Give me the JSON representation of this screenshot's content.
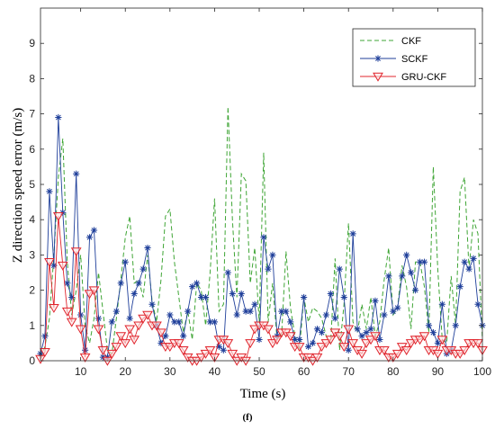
{
  "chart_data": {
    "type": "line",
    "xlabel": "Time (s)",
    "ylabel": "Z direction speed error (m/s)",
    "caption": "(f)",
    "xlim": [
      1,
      100
    ],
    "ylim": [
      0,
      10
    ],
    "xticks": [
      "10",
      "20",
      "30",
      "40",
      "50",
      "60",
      "70",
      "80",
      "90",
      "100"
    ],
    "yticks": [
      "0",
      "1",
      "2",
      "3",
      "4",
      "5",
      "6",
      "7",
      "8",
      "9"
    ],
    "legend_position": "top-right",
    "x": [
      1,
      2,
      3,
      4,
      5,
      6,
      7,
      8,
      9,
      10,
      11,
      12,
      13,
      14,
      15,
      16,
      17,
      18,
      19,
      20,
      21,
      22,
      23,
      24,
      25,
      26,
      27,
      28,
      29,
      30,
      31,
      32,
      33,
      34,
      35,
      36,
      37,
      38,
      39,
      40,
      41,
      42,
      43,
      44,
      45,
      46,
      47,
      48,
      49,
      50,
      51,
      52,
      53,
      54,
      55,
      56,
      57,
      58,
      59,
      60,
      61,
      62,
      63,
      64,
      65,
      66,
      67,
      68,
      69,
      70,
      71,
      72,
      73,
      74,
      75,
      76,
      77,
      78,
      79,
      80,
      81,
      82,
      83,
      84,
      85,
      86,
      87,
      88,
      89,
      90,
      91,
      92,
      93,
      94,
      95,
      96,
      97,
      98,
      99,
      100
    ],
    "series": [
      {
        "name": "CKF",
        "color": "#3fa535",
        "style": "dashed",
        "marker": "none",
        "values": [
          0.1,
          0.4,
          1.2,
          3.0,
          5.2,
          6.3,
          2.8,
          1.3,
          2.0,
          3.0,
          1.0,
          0.5,
          1.2,
          2.5,
          1.4,
          0.3,
          0.2,
          1.2,
          2.3,
          3.5,
          4.1,
          2.2,
          2.3,
          1.8,
          3.0,
          1.7,
          1.1,
          2.3,
          4.1,
          4.3,
          2.8,
          1.8,
          0.8,
          1.4,
          0.6,
          2.2,
          2.0,
          1.0,
          2.5,
          4.6,
          1.4,
          1.6,
          7.2,
          4.0,
          1.8,
          5.3,
          5.1,
          2.2,
          3.2,
          1.1,
          5.9,
          1.1,
          2.2,
          0.6,
          0.7,
          3.1,
          1.5,
          0.7,
          0.3,
          1.8,
          1.1,
          1.5,
          1.4,
          1.2,
          0.7,
          0.5,
          2.9,
          0.3,
          1.6,
          3.9,
          1.1,
          0.8,
          1.6,
          0.9,
          1.8,
          0.7,
          1.1,
          2.3,
          3.2,
          1.3,
          1.5,
          2.7,
          2.1,
          0.9,
          2.8,
          2.8,
          2.1,
          0.8,
          5.5,
          2.6,
          0.6,
          0.5,
          2.4,
          1.0,
          4.8,
          5.2,
          2.6,
          4.0,
          3.6,
          0.6
        ]
      },
      {
        "name": "SCKF",
        "color": "#1f3f9a",
        "style": "solid",
        "marker": "star",
        "values": [
          0.2,
          0.7,
          4.8,
          2.7,
          6.9,
          4.2,
          2.2,
          1.8,
          5.3,
          1.3,
          0.3,
          3.5,
          3.7,
          1.2,
          0.1,
          0.1,
          1.1,
          1.4,
          2.2,
          2.8,
          1.2,
          1.9,
          2.2,
          2.6,
          3.2,
          1.6,
          1.0,
          0.5,
          0.7,
          1.3,
          1.1,
          1.1,
          0.7,
          1.4,
          2.1,
          2.2,
          1.8,
          1.8,
          1.1,
          1.1,
          0.4,
          0.3,
          2.5,
          1.9,
          1.3,
          1.9,
          1.4,
          1.4,
          1.6,
          0.6,
          3.5,
          2.6,
          3.0,
          0.7,
          1.4,
          1.4,
          1.1,
          0.6,
          0.6,
          1.8,
          0.4,
          0.5,
          0.9,
          0.8,
          1.3,
          1.9,
          1.2,
          2.6,
          1.8,
          0.3,
          3.6,
          0.9,
          0.7,
          0.8,
          0.9,
          1.7,
          0.6,
          1.3,
          2.4,
          1.4,
          1.5,
          2.4,
          3.0,
          2.5,
          2.0,
          2.8,
          2.8,
          1.0,
          0.8,
          0.5,
          1.6,
          0.2,
          0.3,
          1.0,
          2.1,
          2.8,
          2.6,
          2.9,
          1.6,
          1.0
        ]
      },
      {
        "name": "GRU-CKF",
        "color": "#e0242c",
        "style": "solid",
        "marker": "triangle-down",
        "values": [
          0.05,
          0.25,
          2.8,
          1.5,
          4.1,
          2.7,
          1.4,
          1.1,
          3.1,
          0.9,
          0.1,
          1.9,
          2.0,
          0.9,
          0.3,
          0.0,
          0.2,
          0.4,
          0.7,
          0.5,
          0.9,
          0.6,
          1.0,
          1.2,
          1.3,
          1.0,
          1.0,
          0.8,
          0.4,
          0.4,
          0.5,
          0.5,
          0.3,
          0.1,
          0.0,
          0.0,
          0.1,
          0.2,
          0.3,
          0.1,
          0.6,
          0.6,
          0.5,
          0.2,
          0.0,
          0.1,
          0.0,
          0.5,
          0.9,
          1.0,
          1.0,
          0.9,
          0.5,
          0.6,
          0.8,
          0.8,
          0.7,
          0.4,
          0.4,
          0.1,
          0.1,
          0.0,
          0.1,
          0.4,
          0.5,
          0.6,
          0.8,
          0.7,
          0.4,
          0.9,
          0.5,
          0.3,
          0.2,
          0.5,
          0.6,
          0.7,
          0.3,
          0.3,
          0.1,
          0.1,
          0.2,
          0.4,
          0.3,
          0.5,
          0.6,
          0.6,
          0.7,
          0.3,
          0.3,
          0.2,
          0.6,
          0.3,
          0.3,
          0.2,
          0.2,
          0.3,
          0.5,
          0.5,
          0.5,
          0.3
        ]
      }
    ]
  }
}
